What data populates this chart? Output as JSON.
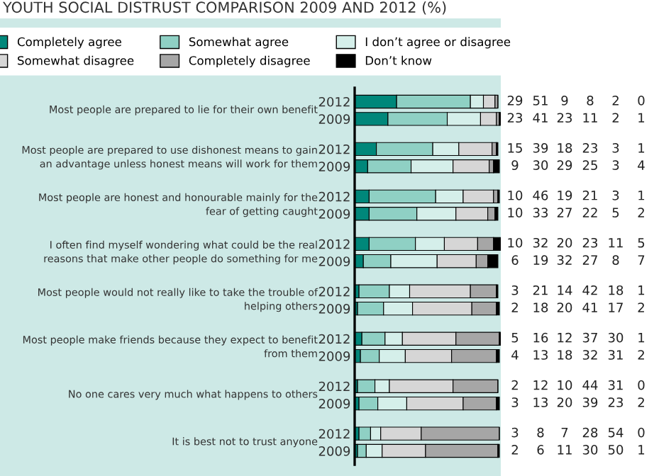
{
  "chart_data": {
    "type": "bar",
    "orientation": "horizontal",
    "stacked": true,
    "title": "YOUTH SOCIAL DISTRUST COMPARISON 2009 AND 2012 (%)",
    "categories": [
      "2012",
      "2009",
      "2012",
      "2009",
      "2012",
      "2009",
      "2012",
      "2009",
      "2012",
      "2009",
      "2012",
      "2009",
      "2012",
      "2009",
      "2012",
      "2009"
    ],
    "annotations": [
      "Most people are prepared to lie for their own benefit",
      "Most people are prepared to use dishonest means to gain\nan advantage unless honest means will work for them",
      "Most people are honest and honourable mainly for the\nfear of getting caught",
      "I often find myself wondering what could be the real\nreasons that make other people do something for me",
      "Most people would not really like to take the trouble of\nhelping others",
      "Most people make friends because they expect to benefit\nfrom them",
      "No one cares very much what happens to others",
      "It is best not to trust anyone"
    ],
    "series": [
      {
        "name": "Completely agree",
        "color": "#00877a",
        "values": [
          29,
          23,
          15,
          9,
          10,
          10,
          10,
          6,
          3,
          2,
          5,
          4,
          2,
          3,
          3,
          2
        ]
      },
      {
        "name": "Somewhat agree",
        "color": "#8fd0c4",
        "values": [
          51,
          41,
          39,
          30,
          46,
          33,
          32,
          19,
          21,
          18,
          16,
          13,
          12,
          13,
          8,
          6
        ]
      },
      {
        "name": "I don’t agree or disagree",
        "color": "#d5efea",
        "values": [
          9,
          23,
          18,
          29,
          19,
          27,
          20,
          32,
          14,
          20,
          12,
          18,
          10,
          20,
          7,
          11
        ]
      },
      {
        "name": "Somewhat disagree",
        "color": "#d6d6d6",
        "values": [
          8,
          11,
          23,
          25,
          21,
          22,
          23,
          27,
          42,
          41,
          37,
          32,
          44,
          39,
          28,
          30
        ]
      },
      {
        "name": "Completely disagree",
        "color": "#a6a6a6",
        "values": [
          2,
          2,
          3,
          3,
          3,
          5,
          11,
          8,
          18,
          17,
          30,
          31,
          31,
          23,
          54,
          50
        ]
      },
      {
        "name": "Don’t know",
        "color": "#000000",
        "values": [
          0,
          1,
          1,
          4,
          1,
          2,
          5,
          7,
          1,
          2,
          1,
          2,
          0,
          2,
          0,
          1
        ]
      }
    ],
    "data_labels": true,
    "legend": "top",
    "tick_labels": "y",
    "grid": false
  }
}
